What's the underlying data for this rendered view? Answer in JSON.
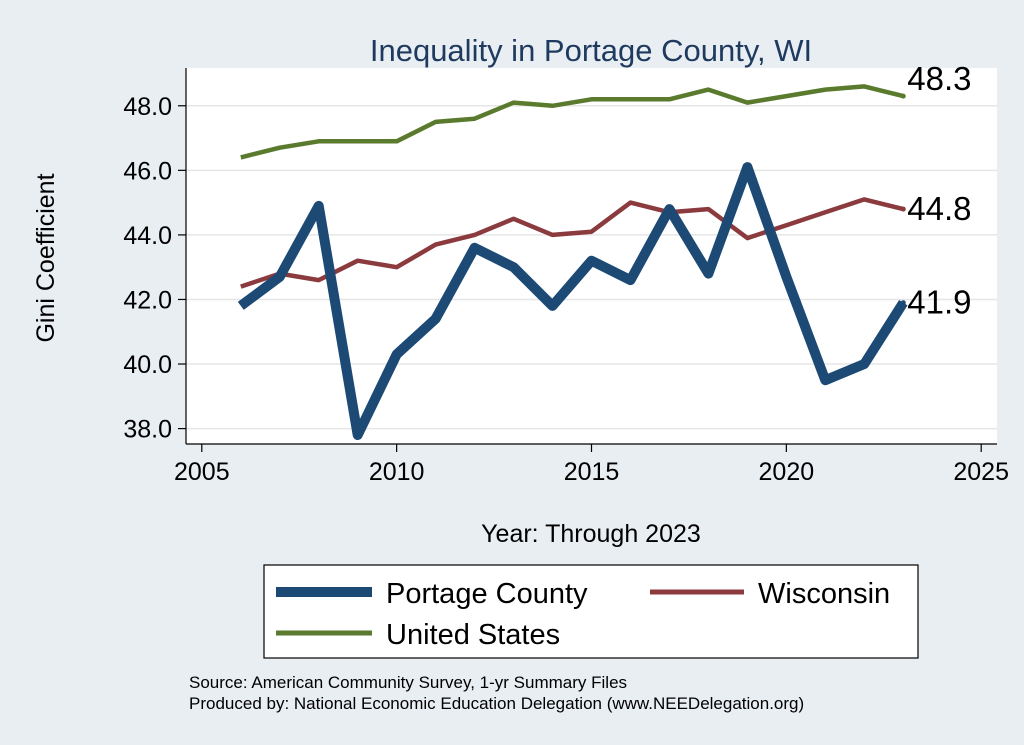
{
  "chart_data": {
    "type": "line",
    "title": "Inequality in Portage County, WI",
    "xlabel": "Year: Through 2023",
    "ylabel": "Gini Coefficient",
    "xlim": [
      2005,
      2025
    ],
    "ylim": [
      37.6,
      49.0
    ],
    "xticks": [
      2005,
      2010,
      2015,
      2020,
      2025
    ],
    "yticks": [
      38.0,
      40.0,
      42.0,
      44.0,
      46.0,
      48.0
    ],
    "ytick_labels": [
      "38.0",
      "40.0",
      "42.0",
      "44.0",
      "46.0",
      "48.0"
    ],
    "x": [
      2006,
      2007,
      2008,
      2009,
      2010,
      2011,
      2012,
      2013,
      2014,
      2015,
      2016,
      2017,
      2018,
      2019,
      2020,
      2021,
      2022,
      2023
    ],
    "series": [
      {
        "name": "Portage County",
        "color": "#1c4a75",
        "end_label": "41.9",
        "values": [
          41.8,
          42.7,
          44.9,
          37.8,
          40.3,
          41.4,
          43.6,
          43.0,
          41.8,
          43.2,
          42.6,
          44.8,
          42.8,
          46.1,
          42.7,
          39.5,
          40.0,
          41.9
        ]
      },
      {
        "name": "Wisconsin",
        "color": "#8b3a3e",
        "end_label": "44.8",
        "values": [
          42.4,
          42.8,
          42.6,
          43.2,
          43.0,
          43.7,
          44.0,
          44.5,
          44.0,
          44.1,
          45.0,
          44.7,
          44.8,
          43.9,
          44.3,
          44.7,
          45.1,
          44.8
        ]
      },
      {
        "name": "United States",
        "color": "#5a7a2e",
        "end_label": "48.3",
        "values": [
          46.4,
          46.7,
          46.9,
          46.9,
          46.9,
          47.5,
          47.6,
          48.1,
          48.0,
          48.2,
          48.2,
          48.2,
          48.5,
          48.1,
          48.3,
          48.5,
          48.6,
          48.3
        ]
      }
    ],
    "legend": {
      "placement": "bottom"
    },
    "notes": [
      "Source: American Community Survey, 1-yr Summary Files",
      "Produced by: National Economic Education Delegation (www.NEEDelegation.org)"
    ]
  }
}
